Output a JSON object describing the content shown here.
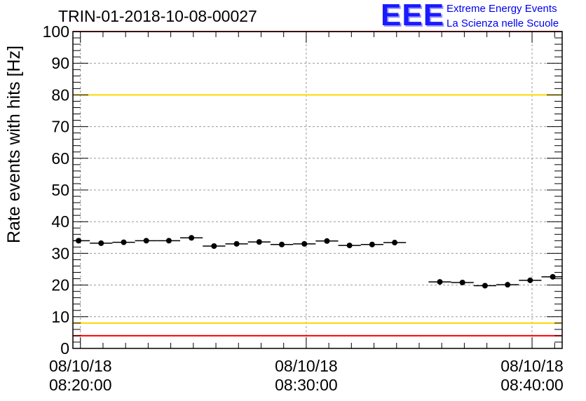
{
  "title": "TRIN-01-2018-10-08-00027",
  "logo": {
    "mark": "EEE",
    "line1": "Extreme Energy Events",
    "line2": "La Scienza nelle Scuole"
  },
  "colors": {
    "red_limit": "#ff0000",
    "yellow_limit": "#ffd700",
    "points": "#000000",
    "logo": "#1a1aff"
  },
  "chart_data": {
    "type": "scatter",
    "title": "TRIN-01-2018-10-08-00027",
    "xlabel": "",
    "ylabel": "Rate events with hits [Hz]",
    "ylim": [
      0,
      100
    ],
    "xlim": [
      "08:19:40",
      "08:41:20"
    ],
    "grid": true,
    "yticks": [
      0,
      10,
      20,
      30,
      40,
      50,
      60,
      70,
      80,
      90,
      100
    ],
    "xticks": [
      {
        "date": "08/10/18",
        "time": "08:20:00",
        "value": "08:20:00"
      },
      {
        "date": "08/10/18",
        "time": "08:30:00",
        "value": "08:30:00"
      },
      {
        "date": "08/10/18",
        "time": "08:40:00",
        "value": "08:40:00"
      }
    ],
    "hlines": [
      {
        "y": 100,
        "color": "red"
      },
      {
        "y": 4,
        "color": "red"
      },
      {
        "y": 80,
        "color": "yellow"
      },
      {
        "y": 8,
        "color": "yellow"
      }
    ],
    "points": [
      {
        "x": "08:19:55",
        "y": 34.0
      },
      {
        "x": "08:20:55",
        "y": 33.2
      },
      {
        "x": "08:21:55",
        "y": 33.5
      },
      {
        "x": "08:22:55",
        "y": 34.0
      },
      {
        "x": "08:23:55",
        "y": 34.0
      },
      {
        "x": "08:24:55",
        "y": 34.9
      },
      {
        "x": "08:25:55",
        "y": 32.3
      },
      {
        "x": "08:26:55",
        "y": 33.0
      },
      {
        "x": "08:27:55",
        "y": 33.6
      },
      {
        "x": "08:28:55",
        "y": 32.8
      },
      {
        "x": "08:29:55",
        "y": 33.0
      },
      {
        "x": "08:30:55",
        "y": 33.9
      },
      {
        "x": "08:31:55",
        "y": 32.5
      },
      {
        "x": "08:32:55",
        "y": 32.8
      },
      {
        "x": "08:33:55",
        "y": 33.4
      },
      {
        "x": "08:35:55",
        "y": 21.0
      },
      {
        "x": "08:36:55",
        "y": 20.8
      },
      {
        "x": "08:37:55",
        "y": 19.8
      },
      {
        "x": "08:38:55",
        "y": 20.1
      },
      {
        "x": "08:39:55",
        "y": 21.5
      },
      {
        "x": "08:40:55",
        "y": 22.6
      }
    ],
    "bin_width_s": 60
  }
}
